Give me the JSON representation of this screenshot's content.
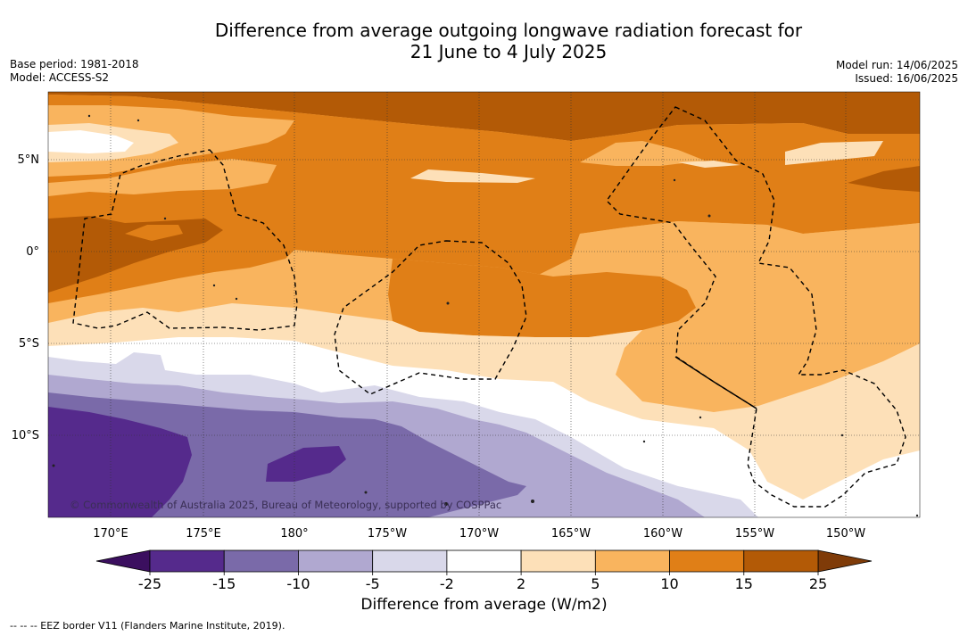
{
  "header": {
    "title_line1": "Difference from average outgoing longwave radiation forecast for",
    "title_line2": "21 June to 4 July 2025",
    "base_period": "Base period: 1981-2018",
    "model": "Model: ACCESS-S2",
    "model_run": "Model run: 14/06/2025",
    "issued": "Issued: 16/06/2025"
  },
  "map": {
    "lat_labels": [
      "5°N",
      "0°",
      "5°S",
      "10°S"
    ],
    "lon_labels": [
      "170°E",
      "175°E",
      "180°",
      "175°W",
      "170°W",
      "165°W",
      "160°W",
      "155°W",
      "150°W"
    ],
    "copyright": "© Commonwealth of Australia 2025, Bureau of Meteorology, supported by COSPPac"
  },
  "colorbar": {
    "ticks": [
      "-25",
      "-15",
      "-10",
      "-5",
      "-2",
      "2",
      "5",
      "10",
      "15",
      "25"
    ],
    "colors": [
      "#552a8c",
      "#7a6aa9",
      "#b0a8d0",
      "#d9d8ea",
      "#ffffff",
      "#fde0b8",
      "#f9b45e",
      "#e07f17",
      "#b35a06"
    ],
    "under_color": "#3b0f5f",
    "over_color": "#7f3b08",
    "label": "Difference from average (W/m2)"
  },
  "legend": {
    "eez": "--  --  -- EEZ border V11 (Flanders Marine Institute, 2019)."
  }
}
